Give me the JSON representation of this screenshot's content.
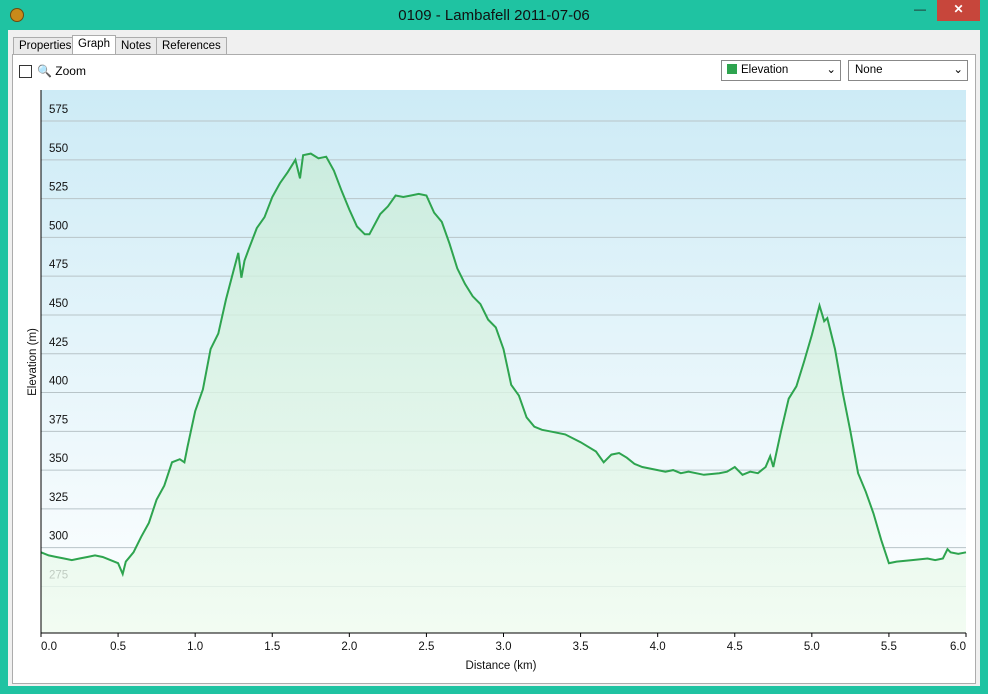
{
  "window": {
    "title": "0109 - Lambafell 2011-07-06"
  },
  "tabs": [
    {
      "label": "Properties"
    },
    {
      "label": "Graph",
      "selected": true
    },
    {
      "label": "Notes"
    },
    {
      "label": "References"
    }
  ],
  "toolbar": {
    "zoom_label": "Zoom",
    "primary_select": "Elevation",
    "secondary_select": "None"
  },
  "chart_data": {
    "type": "line",
    "x_label": "Distance  (km)",
    "y_label": "Elevation (m)",
    "xlim": [
      0,
      6
    ],
    "ylim": [
      245,
      595
    ],
    "xticks": [
      {
        "value": 0,
        "label": "0.0"
      },
      0.5,
      {
        "value": 1,
        "label": "1.0"
      },
      1.5,
      {
        "value": 2,
        "label": "2.0"
      },
      2.5,
      {
        "value": 3,
        "label": "3.0"
      },
      3.5,
      {
        "value": 4,
        "label": "4.0"
      },
      4.5,
      {
        "value": 5,
        "label": "5.0"
      },
      5.5,
      {
        "value": 6,
        "label": "6.0"
      }
    ],
    "yticks": [
      275,
      300,
      325,
      350,
      375,
      400,
      425,
      450,
      475,
      500,
      525,
      550,
      575
    ],
    "grid": true,
    "x": [
      0,
      0.05,
      0.1,
      0.15,
      0.2,
      0.25,
      0.3,
      0.35,
      0.4,
      0.45,
      0.5,
      0.53,
      0.55,
      0.6,
      0.65,
      0.7,
      0.75,
      0.8,
      0.85,
      0.9,
      0.93,
      0.95,
      1.0,
      1.05,
      1.1,
      1.15,
      1.2,
      1.25,
      1.28,
      1.3,
      1.32,
      1.35,
      1.4,
      1.45,
      1.5,
      1.55,
      1.6,
      1.65,
      1.68,
      1.7,
      1.75,
      1.8,
      1.85,
      1.9,
      1.95,
      2.0,
      2.05,
      2.1,
      2.13,
      2.2,
      2.25,
      2.3,
      2.35,
      2.4,
      2.45,
      2.5,
      2.55,
      2.6,
      2.65,
      2.7,
      2.75,
      2.8,
      2.85,
      2.9,
      2.95,
      3.0,
      3.05,
      3.1,
      3.15,
      3.2,
      3.25,
      3.3,
      3.4,
      3.5,
      3.6,
      3.65,
      3.7,
      3.75,
      3.8,
      3.85,
      3.9,
      4.0,
      4.05,
      4.1,
      4.15,
      4.2,
      4.3,
      4.4,
      4.45,
      4.5,
      4.55,
      4.6,
      4.65,
      4.7,
      4.73,
      4.75,
      4.8,
      4.85,
      4.9,
      4.95,
      5.0,
      5.05,
      5.08,
      5.1,
      5.15,
      5.2,
      5.25,
      5.3,
      5.35,
      5.4,
      5.45,
      5.5,
      5.55,
      5.65,
      5.75,
      5.8,
      5.85,
      5.88,
      5.9,
      5.95,
      6.0
    ],
    "series": [
      {
        "name": "Elevation",
        "color": "#2ea44f",
        "values": [
          297,
          295,
          294,
          293,
          292,
          293,
          294,
          295,
          294,
          292,
          290,
          283,
          291,
          297,
          307,
          316,
          331,
          340,
          355,
          357,
          355,
          365,
          388,
          402,
          428,
          438,
          460,
          479,
          490,
          474,
          485,
          493,
          506,
          513,
          526,
          535,
          542,
          550,
          538,
          553,
          554,
          551,
          552,
          543,
          530,
          518,
          507,
          502,
          502,
          515,
          520,
          527,
          526,
          527,
          528,
          527,
          516,
          510,
          496,
          480,
          470,
          462,
          457,
          447,
          442,
          428,
          405,
          398,
          384,
          378,
          376,
          375,
          373,
          368,
          362,
          355,
          360,
          361,
          358,
          354,
          352,
          350,
          349,
          350,
          348,
          349,
          347,
          348,
          349,
          352,
          347,
          349,
          348,
          352,
          359,
          352,
          375,
          396,
          404,
          420,
          437,
          456,
          446,
          448,
          428,
          400,
          375,
          348,
          336,
          322,
          305,
          290,
          291,
          292,
          293,
          292,
          293,
          299,
          297,
          296,
          297
        ]
      }
    ]
  }
}
